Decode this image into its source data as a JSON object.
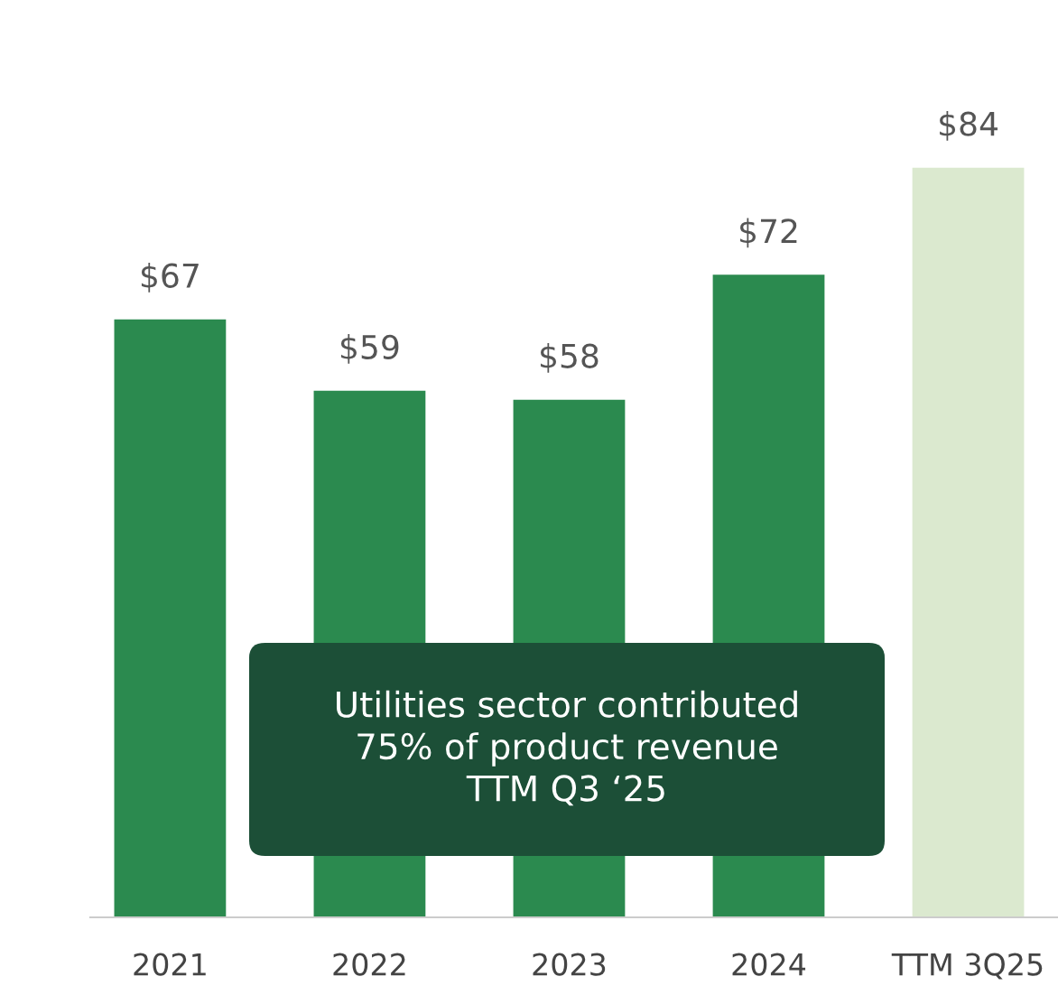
{
  "chart_data": {
    "type": "bar",
    "categories": [
      "2021",
      "2022",
      "2023",
      "2024",
      "TTM 3Q25"
    ],
    "values": [
      67,
      59,
      58,
      72,
      84
    ],
    "colors": [
      "#2b8a4f",
      "#2b8a4f",
      "#2b8a4f",
      "#2b8a4f",
      "#dbe9cf"
    ],
    "value_labels": [
      "$67",
      "$59",
      "$58",
      "$72",
      "$84"
    ],
    "annotations": [
      "Utilities sector contributed\n75% of product revenue\nTTM Q3 ‘25"
    ],
    "grid": false,
    "legend": false
  }
}
